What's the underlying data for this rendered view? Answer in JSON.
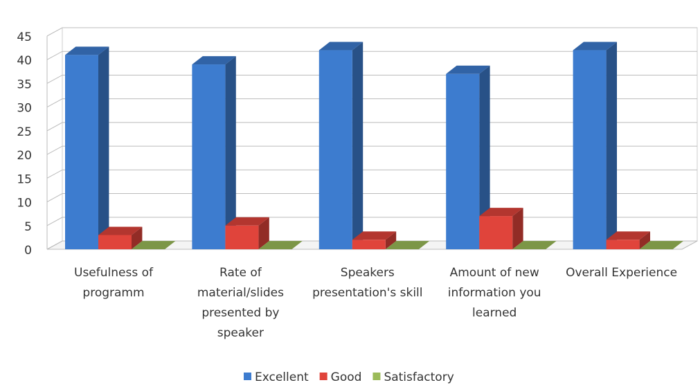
{
  "chart_data": {
    "type": "bar3d",
    "categories": [
      "Usefulness of programm",
      "Rate of material/slides presented by speaker",
      "Speakers presentation's skill",
      "Amount of new information you learned",
      "Overall Experience"
    ],
    "series": [
      {
        "name": "Excellent",
        "color": "#3d7ccf",
        "values": [
          41,
          39,
          42,
          37,
          42
        ]
      },
      {
        "name": "Good",
        "color": "#e0443b",
        "values": [
          3,
          5,
          2,
          7,
          2
        ]
      },
      {
        "name": "Satisfactory",
        "color": "#9bbb59",
        "values": [
          0,
          0,
          0,
          0,
          0
        ]
      }
    ],
    "ylim": [
      0,
      45
    ],
    "yticks": [
      0,
      5,
      10,
      15,
      20,
      25,
      30,
      35,
      40,
      45
    ],
    "grid": true,
    "legend": "bottom"
  }
}
